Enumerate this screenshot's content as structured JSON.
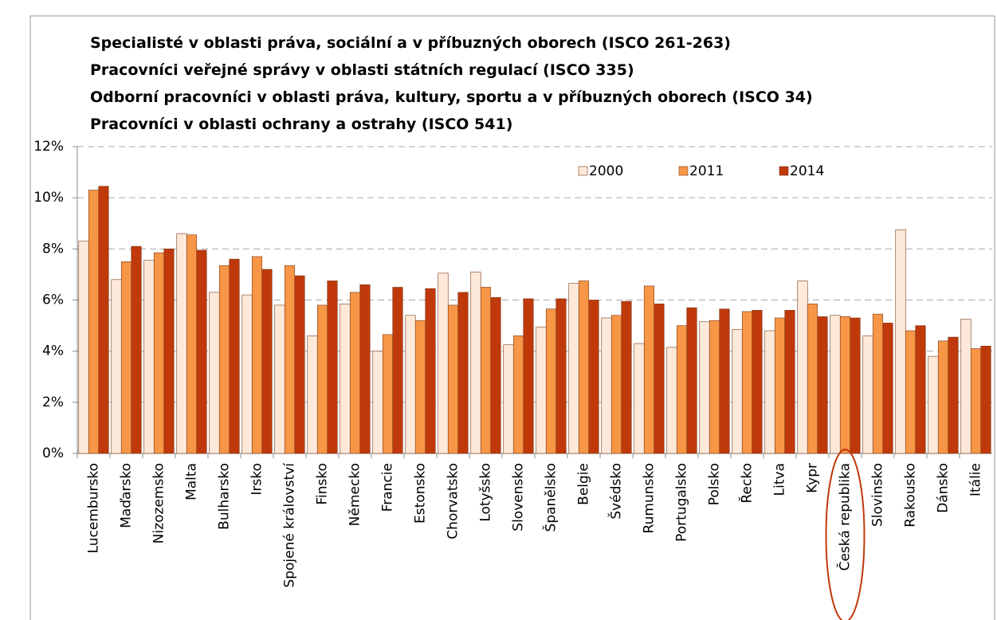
{
  "chart_data": {
    "type": "bar",
    "title_lines": [
      "Specialisté v oblasti práva, sociální a v příbuzných oborech (ISCO 261-263)",
      "Pracovníci veřejné správy v oblasti státních regulací (ISCO 335)",
      "Odborní pracovníci v oblasti práva, kultury, sportu a v příbuzných oborech (ISCO 34)",
      "Pracovníci v oblasti ochrany a ostrahy (ISCO 541)"
    ],
    "categories": [
      "Lucembursko",
      "Maďarsko",
      "Nizozemsko",
      "Malta",
      "Bulharsko",
      "Irsko",
      "Spojené království",
      "Finsko",
      "Německo",
      "Francie",
      "Estonsko",
      "Chorvatsko",
      "Lotyšsko",
      "Slovensko",
      "Španělsko",
      "Belgie",
      "Švédsko",
      "Rumunsko",
      "Portugalsko",
      "Polsko",
      "Řecko",
      "Litva",
      "Kypr",
      "Česká republika",
      "Slovinsko",
      "Rakousko",
      "Dánsko",
      "Itálie"
    ],
    "series": [
      {
        "name": "2000",
        "color": "#fde9d9",
        "values": [
          8.3,
          6.8,
          7.55,
          8.6,
          6.3,
          6.2,
          5.8,
          4.6,
          5.85,
          4.0,
          5.4,
          7.05,
          7.1,
          4.25,
          4.95,
          6.65,
          5.3,
          4.3,
          4.15,
          5.15,
          4.85,
          4.8,
          6.75,
          5.4,
          4.6,
          8.75,
          3.8,
          5.25
        ]
      },
      {
        "name": "2011",
        "color": "#f79646",
        "values": [
          10.3,
          7.5,
          7.85,
          8.55,
          7.35,
          7.7,
          7.35,
          5.8,
          6.3,
          4.65,
          5.2,
          5.8,
          6.5,
          4.6,
          5.65,
          6.75,
          5.4,
          6.55,
          5.0,
          5.2,
          5.55,
          5.3,
          5.85,
          5.35,
          5.45,
          4.8,
          4.4,
          4.1
        ]
      },
      {
        "name": "2014",
        "color": "#c0390b",
        "values": [
          10.45,
          8.1,
          8.0,
          7.95,
          7.6,
          7.2,
          6.95,
          6.75,
          6.6,
          6.5,
          6.45,
          6.3,
          6.1,
          6.05,
          6.05,
          6.0,
          5.95,
          5.85,
          5.7,
          5.65,
          5.6,
          5.6,
          5.35,
          5.3,
          5.1,
          5.0,
          4.55,
          4.2
        ]
      }
    ],
    "ylim": [
      0,
      12
    ],
    "yticks": [
      {
        "value": 0,
        "label": "0%"
      },
      {
        "value": 2,
        "label": "2%"
      },
      {
        "value": 4,
        "label": "4%"
      },
      {
        "value": 6,
        "label": "6%"
      },
      {
        "value": 8,
        "label": "8%"
      },
      {
        "value": 10,
        "label": "10%"
      },
      {
        "value": 12,
        "label": "12%"
      }
    ],
    "grid": true,
    "legend": "top-right"
  }
}
